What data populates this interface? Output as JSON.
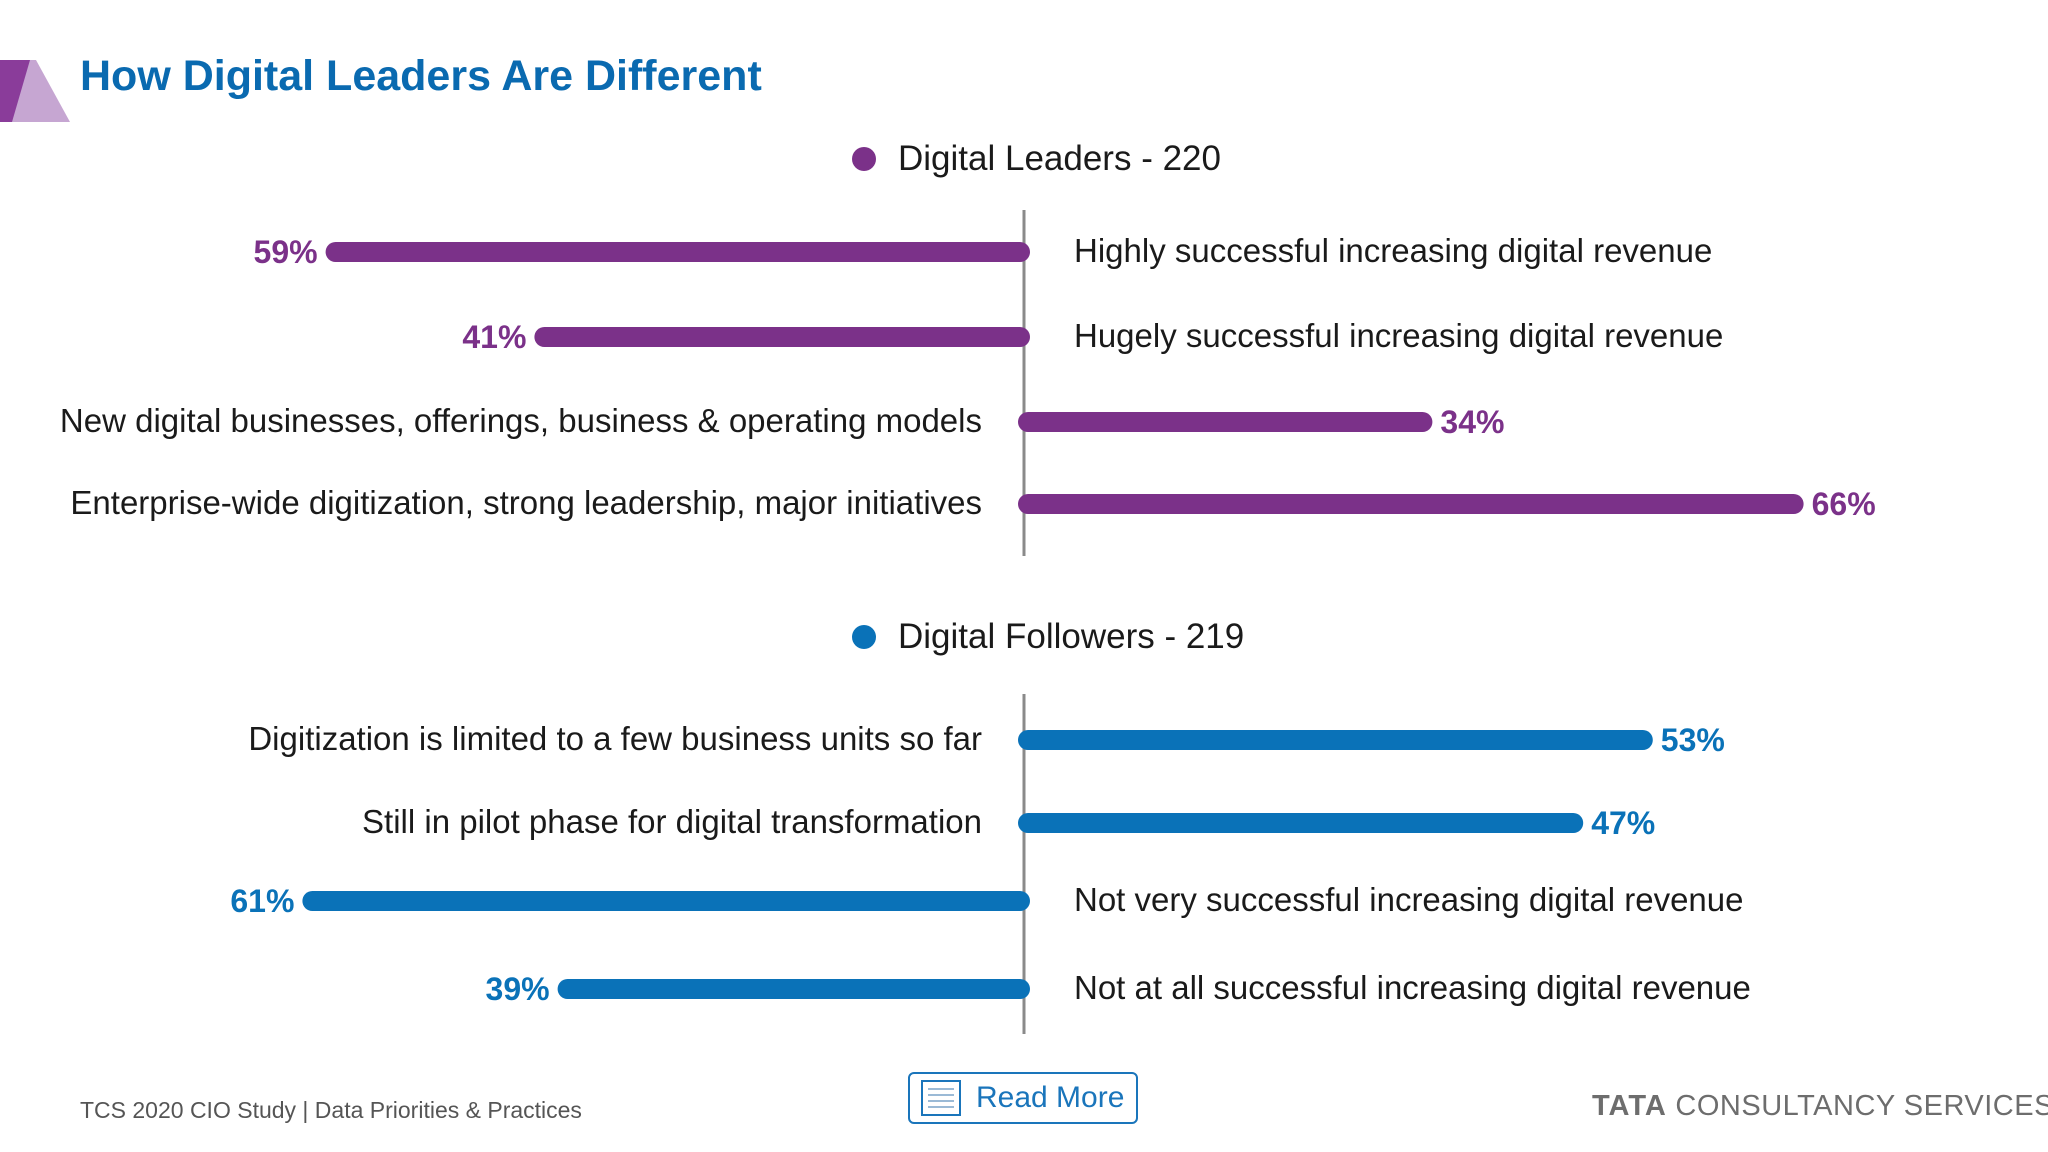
{
  "title": "How Digital Leaders Are Different",
  "footer": {
    "study": "TCS 2020 CIO Study | Data Priorities & Practices",
    "read_more": "Read More",
    "brand_bold": "TATA",
    "brand_rest": " CONSULTANCY SERVICES"
  },
  "colors": {
    "leaders": "#7b3189",
    "followers": "#0a72b8",
    "title": "#0a6ab0"
  },
  "chart_data": {
    "type": "bar",
    "orientation": "horizontal-diverging",
    "value_scale_max": 100,
    "groups": [
      {
        "name": "Digital Leaders - 220",
        "color": "#7b3189",
        "items": [
          {
            "label": "Highly successful increasing digital revenue",
            "value": 59,
            "value_label": "59%",
            "direction": "left"
          },
          {
            "label": "Hugely successful increasing digital revenue",
            "value": 41,
            "value_label": "41%",
            "direction": "left"
          },
          {
            "label": "New digital businesses, offerings, business & operating models",
            "value": 34,
            "value_label": "34%",
            "direction": "right"
          },
          {
            "label": "Enterprise-wide digitization, strong leadership, major initiatives",
            "value": 66,
            "value_label": "66%",
            "direction": "right"
          }
        ]
      },
      {
        "name": "Digital Followers - 219",
        "color": "#0a72b8",
        "items": [
          {
            "label": "Digitization is limited to a few business units so far",
            "value": 53,
            "value_label": "53%",
            "direction": "right"
          },
          {
            "label": "Still in pilot phase for digital transformation",
            "value": 47,
            "value_label": "47%",
            "direction": "right"
          },
          {
            "label": "Not very successful increasing digital revenue",
            "value": 61,
            "value_label": "61%",
            "direction": "left"
          },
          {
            "label": "Not at all successful increasing digital revenue",
            "value": 39,
            "value_label": "39%",
            "direction": "left"
          }
        ]
      }
    ]
  }
}
